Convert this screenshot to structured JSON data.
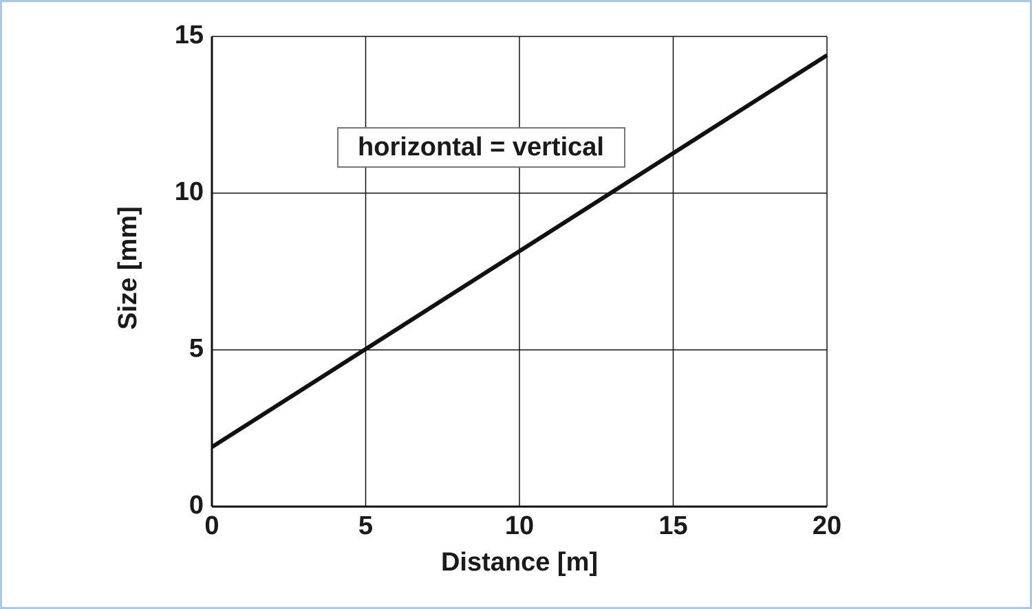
{
  "chart_data": {
    "type": "line",
    "x_label": "Distance [m]",
    "y_label": "Size [mm]",
    "annotation": "horizontal = vertical",
    "x": [
      0,
      20
    ],
    "series": [
      {
        "color": "#111111",
        "values": [
          1.9,
          14.4
        ]
      }
    ],
    "xlim": [
      0,
      20
    ],
    "xticks": [
      0,
      5,
      10,
      15,
      20
    ],
    "ylim": [
      0,
      15
    ],
    "yticks": [
      0,
      5,
      10,
      15
    ],
    "grid": true
  }
}
